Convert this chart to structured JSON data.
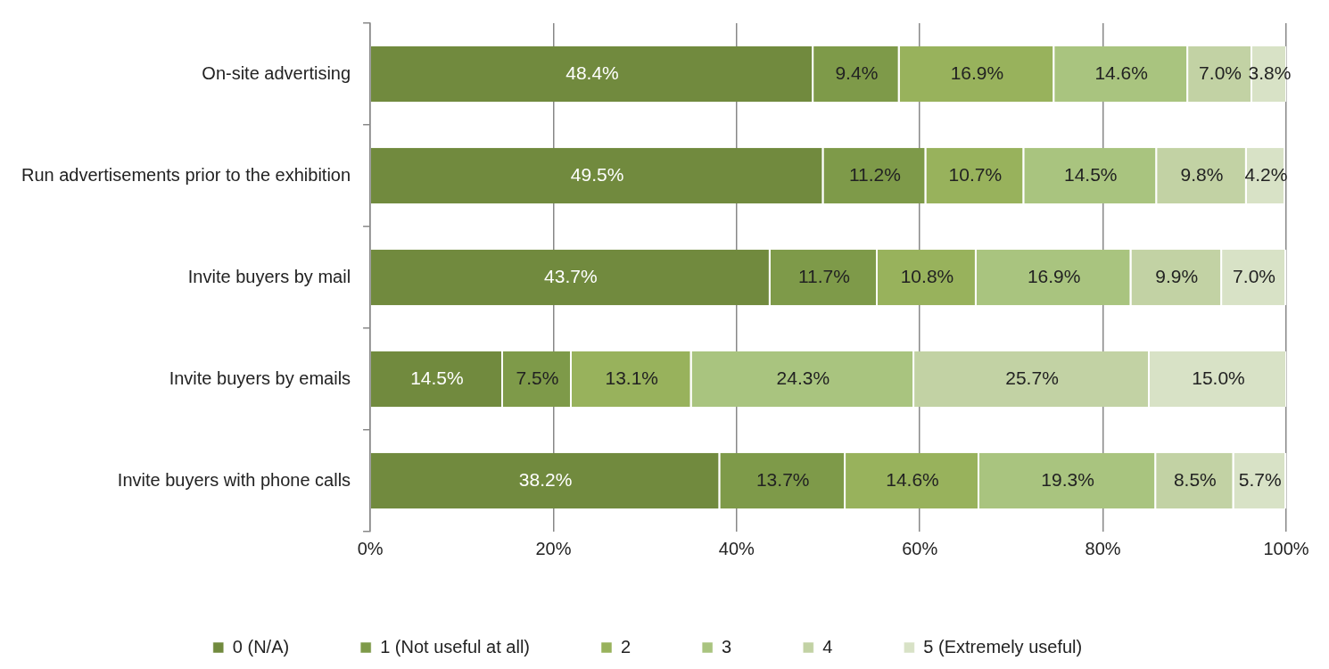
{
  "chart_data": {
    "type": "bar",
    "orientation": "horizontal",
    "stacked": true,
    "categories": [
      "On-site advertising",
      "Run advertisements prior to the exhibition",
      "Invite buyers by mail",
      "Invite buyers by emails",
      "Invite buyers with phone calls"
    ],
    "series": [
      {
        "name": "0 (N/A)",
        "color": "#718a3e",
        "values": [
          48.4,
          49.5,
          43.7,
          14.5,
          38.2
        ],
        "value_labels": [
          "48.4%",
          "49.5%",
          "43.7%",
          "14.5%",
          "38.2%"
        ]
      },
      {
        "name": "1 (Not useful at all)",
        "color": "#7e9a49",
        "values": [
          9.4,
          11.2,
          11.7,
          7.5,
          13.7
        ],
        "value_labels": [
          "9.4%",
          "11.2%",
          "11.7%",
          "7.5%",
          "13.7%"
        ]
      },
      {
        "name": "2",
        "color": "#98b25c",
        "values": [
          16.9,
          10.7,
          10.8,
          13.1,
          14.6
        ],
        "value_labels": [
          "16.9%",
          "10.7%",
          "10.8%",
          "13.1%",
          "14.6%"
        ]
      },
      {
        "name": "3",
        "color": "#a9c47f",
        "values": [
          14.6,
          14.5,
          16.9,
          24.3,
          19.3
        ],
        "value_labels": [
          "14.6%",
          "14.5%",
          "16.9%",
          "24.3%",
          "19.3%"
        ]
      },
      {
        "name": "4",
        "color": "#c2d2a4",
        "values": [
          7.0,
          9.8,
          9.9,
          25.7,
          8.5
        ],
        "value_labels": [
          "7.0%",
          "9.8%",
          "9.9%",
          "25.7%",
          "8.5%"
        ]
      },
      {
        "name": "5 (Extremely useful)",
        "color": "#d8e2c6",
        "values": [
          3.8,
          4.2,
          7.0,
          15.0,
          5.7
        ],
        "value_labels": [
          "3.8%",
          "4.2%",
          "7.0%",
          "15.0%",
          "5.7%"
        ]
      }
    ],
    "xlim": [
      0,
      100
    ],
    "xticks": [
      {
        "value": 0,
        "label": "0%"
      },
      {
        "value": 20,
        "label": "20%"
      },
      {
        "value": 40,
        "label": "40%"
      },
      {
        "value": 60,
        "label": "60%"
      },
      {
        "value": 80,
        "label": "80%"
      },
      {
        "value": 100,
        "label": "100%"
      }
    ],
    "grid": "x",
    "legend": "bottom"
  }
}
